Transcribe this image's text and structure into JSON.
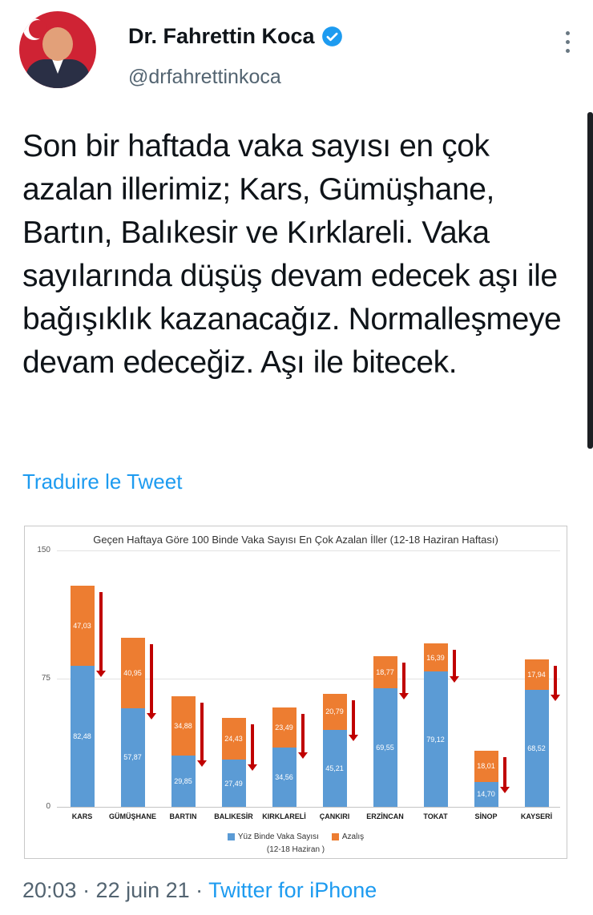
{
  "header": {
    "name": "Dr. Fahrettin Koca",
    "handle": "@drfahrettinkoca"
  },
  "tweet": {
    "text": "Son bir haftada vaka sayısı en çok azalan illerimiz; Kars, Gümüşhane, Bartın, Balıkesir ve Kırklareli. Vaka sayılarında düşüş devam edecek aşı ile bağışıklık kazanacağız. Normalleşmeye devam edeceğiz. Aşı ile bitecek.",
    "translate_link": "Traduire le Tweet"
  },
  "footer": {
    "meta": "20:03 · 22 juin 21 · ",
    "source": "Twitter for iPhone"
  },
  "colors": {
    "accent": "#1d9bf0",
    "bar_blue": "#5b9bd5",
    "bar_orange": "#ed7d31",
    "arrow_red": "#c00000"
  },
  "chart_data": {
    "type": "bar",
    "stacked": true,
    "title": "Geçen Haftaya Göre 100 Binde Vaka Sayısı En Çok Azalan İller (12-18 Haziran Haftası)",
    "categories": [
      "KARS",
      "GÜMÜŞHANE",
      "BARTIN",
      "BALIKESİR",
      "KIRKLARELİ",
      "ÇANKIRI",
      "ERZİNCAN",
      "TOKAT",
      "SİNOP",
      "KAYSERİ"
    ],
    "series": [
      {
        "name": "Yüz Binde Vaka Sayısı",
        "color": "#5b9bd5",
        "values": [
          82.48,
          57.87,
          29.85,
          27.49,
          34.56,
          45.21,
          69.55,
          79.12,
          14.7,
          68.52
        ]
      },
      {
        "name": "Azalış",
        "color": "#ed7d31",
        "values": [
          47.03,
          40.95,
          34.88,
          24.43,
          23.49,
          20.79,
          18.77,
          16.39,
          18.01,
          17.94
        ]
      }
    ],
    "legend_note": "(12-18 Haziran )",
    "xlabel": "",
    "ylabel": "",
    "ylim": [
      0,
      150
    ],
    "yticks": [
      0,
      75,
      150
    ],
    "grid": true,
    "legend_position": "bottom"
  }
}
